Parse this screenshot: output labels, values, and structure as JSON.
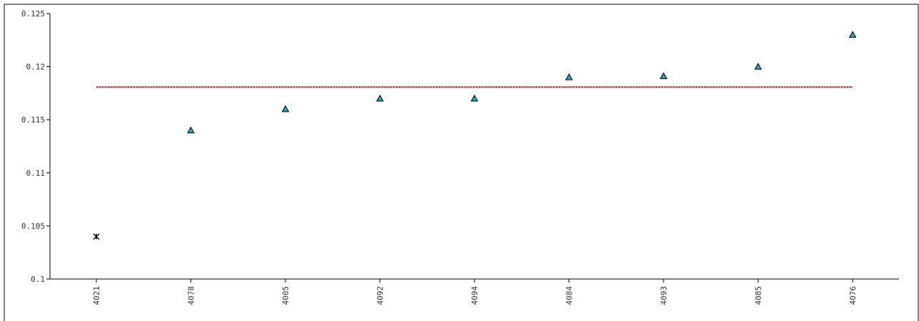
{
  "chart_data": {
    "type": "scatter",
    "title": "",
    "xlabel": "",
    "ylabel": "",
    "categories": [
      "4021",
      "4078",
      "4005",
      "4092",
      "4094",
      "4084",
      "4093",
      "4085",
      "4076"
    ],
    "ylim": [
      0.1,
      0.125
    ],
    "yticks": [
      0.1,
      0.105,
      0.11,
      0.115,
      0.12,
      0.125
    ],
    "ytick_labels": [
      "0.1",
      "0.105",
      "0.11",
      "0.115",
      "0.12",
      "0.125"
    ],
    "points": [
      {
        "category": "4021",
        "value": 0.104,
        "marker": "asterisk"
      },
      {
        "category": "4078",
        "value": 0.114,
        "marker": "triangle"
      },
      {
        "category": "4005",
        "value": 0.116,
        "marker": "triangle"
      },
      {
        "category": "4092",
        "value": 0.117,
        "marker": "triangle"
      },
      {
        "category": "4094",
        "value": 0.117,
        "marker": "triangle"
      },
      {
        "category": "4084",
        "value": 0.119,
        "marker": "triangle"
      },
      {
        "category": "4093",
        "value": 0.1191,
        "marker": "triangle"
      },
      {
        "category": "4085",
        "value": 0.12,
        "marker": "triangle"
      },
      {
        "category": "4076",
        "value": 0.123,
        "marker": "triangle"
      }
    ],
    "reference_line": {
      "value": 0.1181,
      "color": "#cc0000",
      "secondary_color": "#555555"
    },
    "colors": {
      "triangle_fill": "#1aa7c7",
      "triangle_stroke": "#000000",
      "asterisk": "#000000",
      "axis": "#000000"
    },
    "grid": false,
    "legend": "none"
  }
}
